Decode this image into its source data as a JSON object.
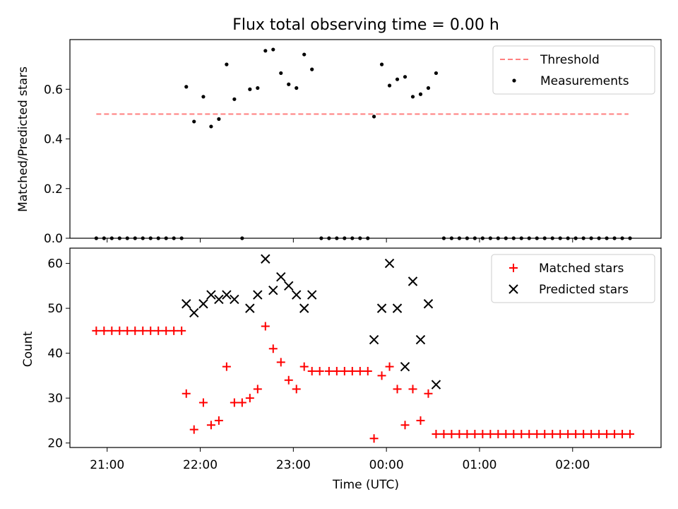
{
  "chart_data": [
    {
      "type": "scatter",
      "title": "Flux total observing time = 0.00 h",
      "xlabel": "",
      "ylabel": "Matched/Predicted stars",
      "xlim": [
        "20:36",
        "02:57"
      ],
      "ylim": [
        0,
        0.8
      ],
      "yticks": [
        "0.0",
        "0.2",
        "0.4",
        "0.6"
      ],
      "ytick_values": [
        0,
        0.2,
        0.4,
        0.6
      ],
      "xticks_minutes": [
        1260,
        1320,
        1380,
        1440,
        1500,
        1560
      ],
      "legend": {
        "placement": "top-right",
        "entries": [
          "Threshold",
          "Measurements"
        ]
      },
      "grid": false,
      "series": [
        {
          "name": "Threshold",
          "style": "dashed-line",
          "color": "#ff7f7f",
          "points": [
            [
              "20:53",
              0.5
            ],
            [
              "02:36",
              0.5
            ]
          ]
        },
        {
          "name": "Measurements",
          "style": "dot",
          "color": "#000000",
          "points": [
            [
              "20:53",
              0
            ],
            [
              "20:58",
              0
            ],
            [
              "21:03",
              0
            ],
            [
              "21:08",
              0
            ],
            [
              "21:13",
              0
            ],
            [
              "21:18",
              0
            ],
            [
              "21:23",
              0
            ],
            [
              "21:28",
              0
            ],
            [
              "21:33",
              0
            ],
            [
              "21:38",
              0
            ],
            [
              "21:43",
              0
            ],
            [
              "21:48",
              0
            ],
            [
              "21:51",
              0.61
            ],
            [
              "21:56",
              0.47
            ],
            [
              "22:02",
              0.57
            ],
            [
              "22:07",
              0.45
            ],
            [
              "22:12",
              0.48
            ],
            [
              "22:17",
              0.7
            ],
            [
              "22:22",
              0.56
            ],
            [
              "22:27",
              0
            ],
            [
              "22:32",
              0.6
            ],
            [
              "22:37",
              0.605
            ],
            [
              "22:42",
              0.755
            ],
            [
              "22:47",
              0.76
            ],
            [
              "22:52",
              0.665
            ],
            [
              "22:57",
              0.62
            ],
            [
              "23:02",
              0.605
            ],
            [
              "23:07",
              0.74
            ],
            [
              "23:12",
              0.68
            ],
            [
              "23:18",
              0
            ],
            [
              "23:23",
              0
            ],
            [
              "23:28",
              0
            ],
            [
              "23:33",
              0
            ],
            [
              "23:38",
              0
            ],
            [
              "23:43",
              0
            ],
            [
              "23:48",
              0
            ],
            [
              "23:52",
              0.49
            ],
            [
              "23:57",
              0.7
            ],
            [
              "00:02",
              0.615
            ],
            [
              "00:07",
              0.64
            ],
            [
              "00:12",
              0.65
            ],
            [
              "00:17",
              0.57
            ],
            [
              "00:22",
              0.58
            ],
            [
              "00:27",
              0.605
            ],
            [
              "00:32",
              0.665
            ],
            [
              "00:37",
              0
            ],
            [
              "00:42",
              0
            ],
            [
              "00:47",
              0
            ],
            [
              "00:52",
              0
            ],
            [
              "00:57",
              0
            ],
            [
              "01:02",
              0
            ],
            [
              "01:07",
              0
            ],
            [
              "01:12",
              0
            ],
            [
              "01:17",
              0
            ],
            [
              "01:22",
              0
            ],
            [
              "01:27",
              0
            ],
            [
              "01:32",
              0
            ],
            [
              "01:37",
              0
            ],
            [
              "01:42",
              0
            ],
            [
              "01:47",
              0
            ],
            [
              "01:52",
              0
            ],
            [
              "01:57",
              0
            ],
            [
              "02:02",
              0
            ],
            [
              "02:07",
              0
            ],
            [
              "02:12",
              0
            ],
            [
              "02:17",
              0
            ],
            [
              "02:22",
              0
            ],
            [
              "02:27",
              0
            ],
            [
              "02:32",
              0
            ],
            [
              "02:37",
              0
            ]
          ]
        }
      ]
    },
    {
      "type": "scatter",
      "title": "",
      "xlabel": "Time (UTC)",
      "ylabel": "Count",
      "xlim": [
        "20:36",
        "02:57"
      ],
      "ylim": [
        19,
        63.4
      ],
      "yticks": [
        "20",
        "30",
        "40",
        "50",
        "60"
      ],
      "ytick_values": [
        20,
        30,
        40,
        50,
        60
      ],
      "xticks": [
        "21:00",
        "22:00",
        "23:00",
        "00:00",
        "01:00",
        "02:00"
      ],
      "xticks_minutes": [
        1260,
        1320,
        1380,
        1440,
        1500,
        1560
      ],
      "legend": {
        "placement": "top-right",
        "entries": [
          "Matched stars",
          "Predicted stars"
        ]
      },
      "grid": false,
      "series": [
        {
          "name": "Matched stars",
          "style": "plus",
          "color": "#ff0000",
          "points": [
            [
              "20:53",
              45
            ],
            [
              "20:58",
              45
            ],
            [
              "21:03",
              45
            ],
            [
              "21:08",
              45
            ],
            [
              "21:13",
              45
            ],
            [
              "21:18",
              45
            ],
            [
              "21:23",
              45
            ],
            [
              "21:28",
              45
            ],
            [
              "21:33",
              45
            ],
            [
              "21:38",
              45
            ],
            [
              "21:43",
              45
            ],
            [
              "21:48",
              45
            ],
            [
              "21:51",
              31
            ],
            [
              "21:56",
              23
            ],
            [
              "22:02",
              29
            ],
            [
              "22:07",
              24
            ],
            [
              "22:12",
              25
            ],
            [
              "22:17",
              37
            ],
            [
              "22:22",
              29
            ],
            [
              "22:27",
              29
            ],
            [
              "22:32",
              30
            ],
            [
              "22:37",
              32
            ],
            [
              "22:42",
              46
            ],
            [
              "22:47",
              41
            ],
            [
              "22:52",
              38
            ],
            [
              "22:57",
              34
            ],
            [
              "23:02",
              32
            ],
            [
              "23:07",
              37
            ],
            [
              "23:12",
              36
            ],
            [
              "23:17",
              36
            ],
            [
              "23:23",
              36
            ],
            [
              "23:28",
              36
            ],
            [
              "23:33",
              36
            ],
            [
              "23:38",
              36
            ],
            [
              "23:43",
              36
            ],
            [
              "23:48",
              36
            ],
            [
              "23:52",
              21
            ],
            [
              "23:57",
              35
            ],
            [
              "00:02",
              37
            ],
            [
              "00:07",
              32
            ],
            [
              "00:12",
              24
            ],
            [
              "00:17",
              32
            ],
            [
              "00:22",
              25
            ],
            [
              "00:27",
              31
            ],
            [
              "00:32",
              22
            ],
            [
              "00:37",
              22
            ],
            [
              "00:42",
              22
            ],
            [
              "00:47",
              22
            ],
            [
              "00:52",
              22
            ],
            [
              "00:57",
              22
            ],
            [
              "01:02",
              22
            ],
            [
              "01:07",
              22
            ],
            [
              "01:12",
              22
            ],
            [
              "01:17",
              22
            ],
            [
              "01:22",
              22
            ],
            [
              "01:27",
              22
            ],
            [
              "01:32",
              22
            ],
            [
              "01:37",
              22
            ],
            [
              "01:42",
              22
            ],
            [
              "01:47",
              22
            ],
            [
              "01:52",
              22
            ],
            [
              "01:57",
              22
            ],
            [
              "02:02",
              22
            ],
            [
              "02:07",
              22
            ],
            [
              "02:12",
              22
            ],
            [
              "02:17",
              22
            ],
            [
              "02:22",
              22
            ],
            [
              "02:27",
              22
            ],
            [
              "02:32",
              22
            ],
            [
              "02:37",
              22
            ]
          ]
        },
        {
          "name": "Predicted stars",
          "style": "x",
          "color": "#000000",
          "points": [
            [
              "21:51",
              51
            ],
            [
              "21:56",
              49
            ],
            [
              "22:02",
              51
            ],
            [
              "22:07",
              53
            ],
            [
              "22:12",
              52
            ],
            [
              "22:17",
              53
            ],
            [
              "22:22",
              52
            ],
            [
              "22:32",
              50
            ],
            [
              "22:37",
              53
            ],
            [
              "22:42",
              61
            ],
            [
              "22:47",
              54
            ],
            [
              "22:52",
              57
            ],
            [
              "22:57",
              55
            ],
            [
              "23:02",
              53
            ],
            [
              "23:07",
              50
            ],
            [
              "23:12",
              53
            ],
            [
              "23:52",
              43
            ],
            [
              "23:57",
              50
            ],
            [
              "00:02",
              60
            ],
            [
              "00:07",
              50
            ],
            [
              "00:12",
              37
            ],
            [
              "00:17",
              56
            ],
            [
              "00:22",
              43
            ],
            [
              "00:27",
              51
            ],
            [
              "00:32",
              33
            ]
          ]
        }
      ]
    }
  ]
}
